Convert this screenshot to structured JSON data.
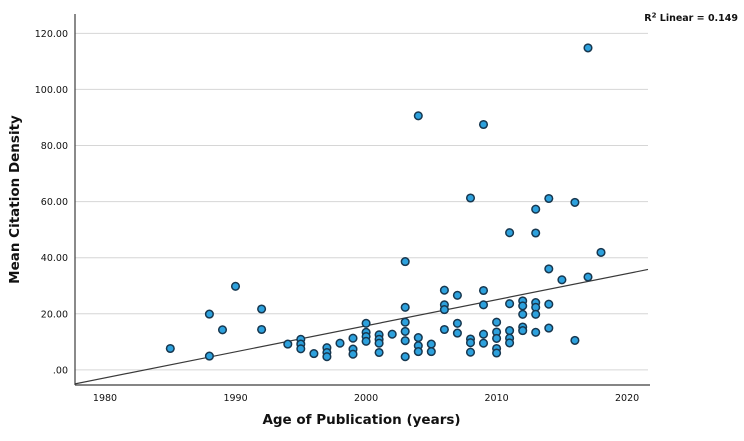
{
  "page": {
    "kind": "statistical-scatter-plot"
  },
  "chart_data": {
    "type": "scatter",
    "title": "",
    "xlabel": "Age of Publication (years)",
    "ylabel": "Mean Citation Density",
    "annotation": {
      "base": "R",
      "sup": "2",
      "rest": " Linear = 0.149"
    },
    "r2_linear": 0.149,
    "legend": "none",
    "grid": "horizontal-only",
    "x_domain": [
      1977.7,
      2021.6
    ],
    "y_domain": [
      -5.4,
      126.9
    ],
    "x_ticks": {
      "values": [
        1980,
        1990,
        2000,
        2010,
        2020
      ],
      "labels": [
        "1980",
        "1990",
        "2000",
        "2010",
        "2020"
      ]
    },
    "y_ticks": {
      "values": [
        0,
        20,
        40,
        60,
        80,
        100,
        120
      ],
      "labels": [
        ".00",
        "20.00",
        "40.00",
        "60.00",
        "80.00",
        "100.00",
        "120.00"
      ]
    },
    "fit_line": {
      "x1": 1977.7,
      "y1": -5.0,
      "x2": 2021.6,
      "y2": 35.8
    },
    "marker": {
      "shape": "circle",
      "fill": "#2da1dd",
      "stroke": "#17374f"
    },
    "colors": {
      "grid": "#d6d6d6",
      "axis": "#3c3c3c",
      "fit_line": "#3a3a3a",
      "text": "#111111",
      "background": "#ffffff"
    },
    "points": [
      [
        1985,
        7.6
      ],
      [
        1988,
        19.9
      ],
      [
        1988,
        4.9
      ],
      [
        1989,
        14.3
      ],
      [
        1990,
        29.8
      ],
      [
        1992,
        21.7
      ],
      [
        1992,
        14.4
      ],
      [
        1994,
        9.2
      ],
      [
        1995,
        10.9
      ],
      [
        1995,
        9.2
      ],
      [
        1995,
        7.5
      ],
      [
        1996,
        5.8
      ],
      [
        1997,
        7.9
      ],
      [
        1997,
        6.2
      ],
      [
        1997,
        4.7
      ],
      [
        1998,
        9.5
      ],
      [
        1999,
        11.3
      ],
      [
        1999,
        7.4
      ],
      [
        1999,
        5.6
      ],
      [
        2000,
        16.6
      ],
      [
        2000,
        13.4
      ],
      [
        2000,
        11.9
      ],
      [
        2000,
        10.2
      ],
      [
        2001,
        12.5
      ],
      [
        2001,
        10.9
      ],
      [
        2001,
        9.5
      ],
      [
        2001,
        6.2
      ],
      [
        2002,
        12.7
      ],
      [
        2003,
        38.6
      ],
      [
        2003,
        22.3
      ],
      [
        2003,
        17.0
      ],
      [
        2003,
        13.7
      ],
      [
        2003,
        10.4
      ],
      [
        2003,
        4.7
      ],
      [
        2004,
        90.6
      ],
      [
        2004,
        11.5
      ],
      [
        2004,
        8.6
      ],
      [
        2004,
        6.5
      ],
      [
        2005,
        9.2
      ],
      [
        2005,
        6.5
      ],
      [
        2006,
        28.4
      ],
      [
        2006,
        23.2
      ],
      [
        2006,
        21.5
      ],
      [
        2006,
        14.4
      ],
      [
        2007,
        26.6
      ],
      [
        2007,
        16.6
      ],
      [
        2007,
        13.1
      ],
      [
        2008,
        61.3
      ],
      [
        2008,
        11.0
      ],
      [
        2008,
        9.7
      ],
      [
        2008,
        6.3
      ],
      [
        2009,
        87.5
      ],
      [
        2009,
        28.3
      ],
      [
        2009,
        23.2
      ],
      [
        2009,
        12.7
      ],
      [
        2009,
        9.5
      ],
      [
        2010,
        17.0
      ],
      [
        2010,
        13.5
      ],
      [
        2010,
        11.2
      ],
      [
        2010,
        7.6
      ],
      [
        2010,
        6.0
      ],
      [
        2011,
        48.9
      ],
      [
        2011,
        23.6
      ],
      [
        2011,
        14.0
      ],
      [
        2011,
        11.3
      ],
      [
        2011,
        9.6
      ],
      [
        2012,
        24.6
      ],
      [
        2012,
        22.8
      ],
      [
        2012,
        19.8
      ],
      [
        2012,
        15.3
      ],
      [
        2012,
        14.0
      ],
      [
        2013,
        57.3
      ],
      [
        2013,
        48.8
      ],
      [
        2013,
        24.0
      ],
      [
        2013,
        22.3
      ],
      [
        2013,
        19.8
      ],
      [
        2013,
        13.4
      ],
      [
        2014,
        61.1
      ],
      [
        2014,
        36.0
      ],
      [
        2014,
        23.4
      ],
      [
        2014,
        14.9
      ],
      [
        2015,
        32.1
      ],
      [
        2016,
        59.7
      ],
      [
        2016,
        10.5
      ],
      [
        2017,
        114.8
      ],
      [
        2017,
        33.1
      ],
      [
        2018,
        41.9
      ]
    ]
  }
}
